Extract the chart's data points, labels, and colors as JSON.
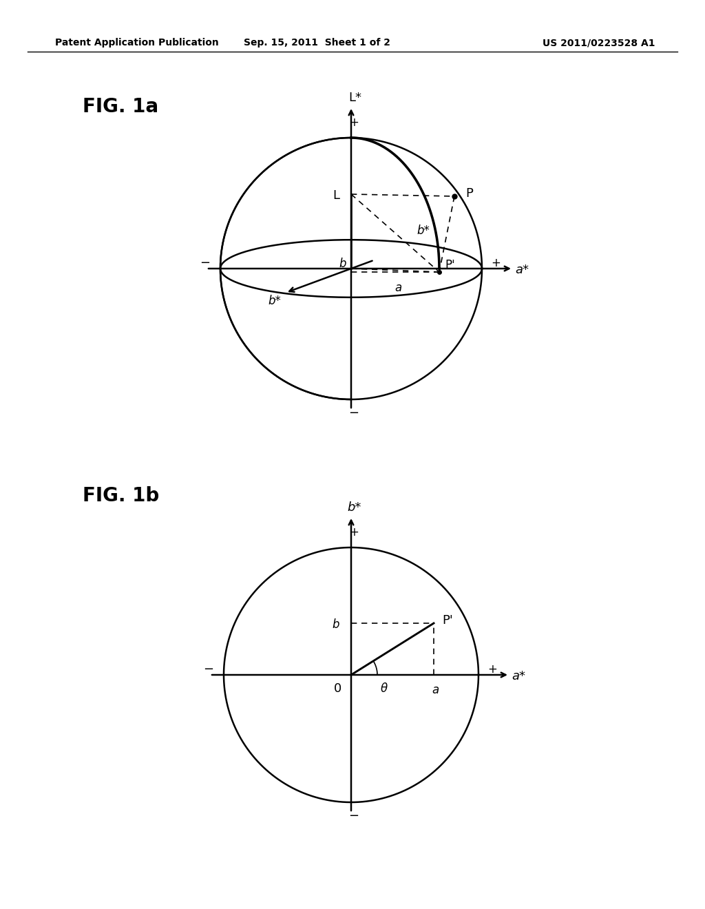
{
  "bg_color": "#ffffff",
  "line_color": "#000000",
  "header_text": "Patent Application Publication",
  "header_date": "Sep. 15, 2011  Sheet 1 of 2",
  "header_patent": "US 2011/0223528 A1",
  "fig1a_label": "FIG. 1a",
  "fig1b_label": "FIG. 1b",
  "lw": 1.8,
  "lw_thin": 1.2,
  "fs_header": 10,
  "fs_label": 20,
  "fs_text": 13,
  "fs_small": 12
}
